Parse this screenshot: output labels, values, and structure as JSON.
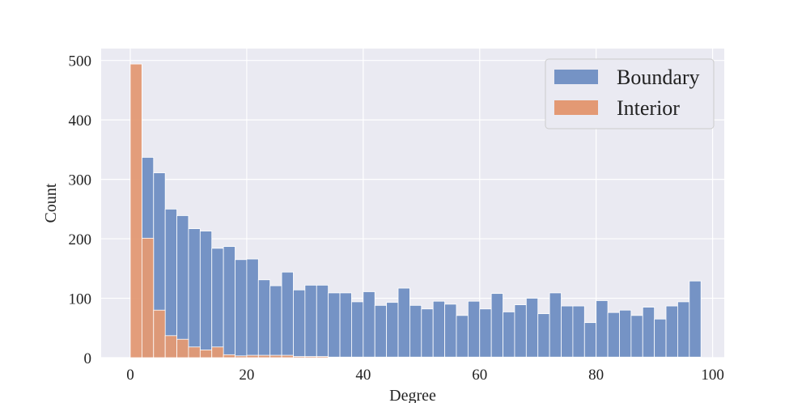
{
  "chart_data": {
    "type": "bar",
    "subtype": "histogram",
    "xlabel": "Degree",
    "ylabel": "Count",
    "xlim": [
      -5,
      102
    ],
    "ylim": [
      0,
      520
    ],
    "xticks": [
      0,
      20,
      40,
      60,
      80,
      100
    ],
    "yticks": [
      0,
      100,
      200,
      300,
      400,
      500
    ],
    "grid": true,
    "legend": "top-right",
    "bin_width": 2,
    "series": [
      {
        "name": "Boundary",
        "color": "#7593c5",
        "bins_start": [
          0,
          2,
          4,
          6,
          8,
          10,
          12,
          14,
          16,
          18,
          20,
          22,
          24,
          26,
          28,
          30,
          32,
          34,
          36,
          38,
          40,
          42,
          44,
          46,
          48,
          50,
          52,
          54,
          56,
          58,
          60,
          62,
          64,
          66,
          68,
          70,
          72,
          74,
          76,
          78,
          80,
          82,
          84,
          86,
          88,
          90,
          92,
          94,
          96
        ],
        "values": [
          0,
          337,
          311,
          250,
          239,
          217,
          213,
          184,
          187,
          165,
          166,
          131,
          121,
          144,
          114,
          122,
          122,
          109,
          109,
          94,
          111,
          88,
          93,
          117,
          88,
          82,
          95,
          90,
          71,
          95,
          82,
          108,
          77,
          89,
          100,
          74,
          109,
          87,
          87,
          59,
          96,
          76,
          80,
          71,
          85,
          65,
          87,
          94,
          129
        ]
      },
      {
        "name": "Interior",
        "color": "#e39974",
        "bins_start": [
          0,
          2,
          4,
          6,
          8,
          10,
          12,
          14,
          16,
          18,
          20,
          22,
          24,
          26,
          28,
          30,
          32,
          34,
          36,
          38,
          40,
          42,
          44,
          46,
          48,
          50,
          52,
          54,
          56,
          58,
          60,
          62,
          64,
          66,
          68,
          70,
          72,
          74,
          76,
          78,
          80,
          82,
          84,
          86,
          88,
          90,
          92,
          94,
          96
        ],
        "values": [
          494,
          201,
          80,
          37,
          31,
          18,
          13,
          18,
          5,
          3,
          4,
          4,
          4,
          4,
          2,
          2,
          2,
          1,
          1,
          1,
          1,
          1,
          1,
          1,
          1,
          1,
          1,
          1,
          1,
          1,
          1,
          1,
          1,
          1,
          1,
          1,
          1,
          1,
          1,
          1,
          1,
          1,
          1,
          1,
          1,
          1,
          1,
          1,
          1
        ]
      }
    ]
  }
}
